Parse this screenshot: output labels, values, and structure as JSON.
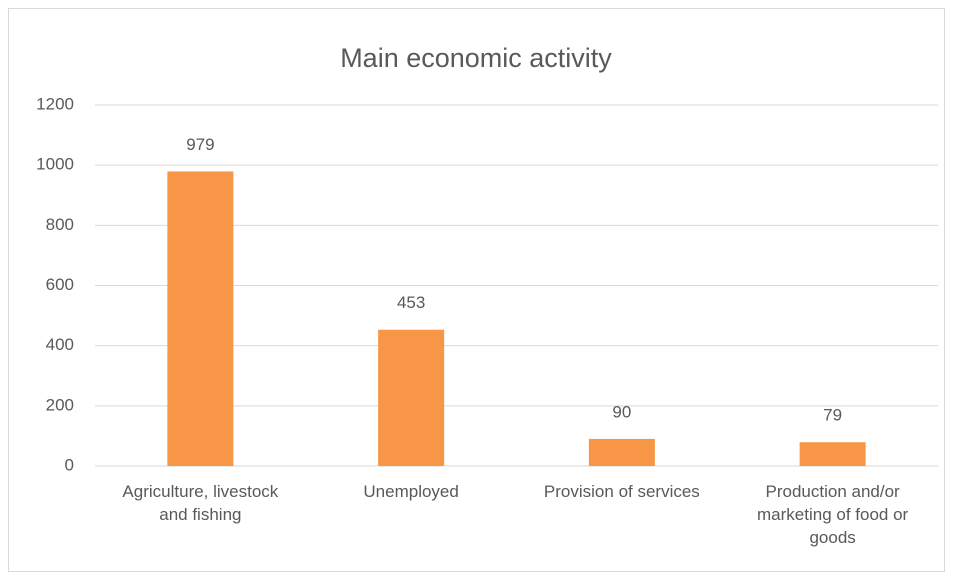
{
  "chart_data": {
    "type": "bar",
    "title": "Main economic activity",
    "categories": [
      "Agriculture, livestock and fishing",
      "Unemployed",
      "Provision of services",
      "Production and/or marketing of food or goods"
    ],
    "values": [
      979,
      453,
      90,
      79
    ],
    "color": "#f79646",
    "ylim": [
      0,
      1200
    ],
    "yticks": [
      0,
      200,
      400,
      600,
      800,
      1000,
      1200
    ],
    "grid": true
  }
}
